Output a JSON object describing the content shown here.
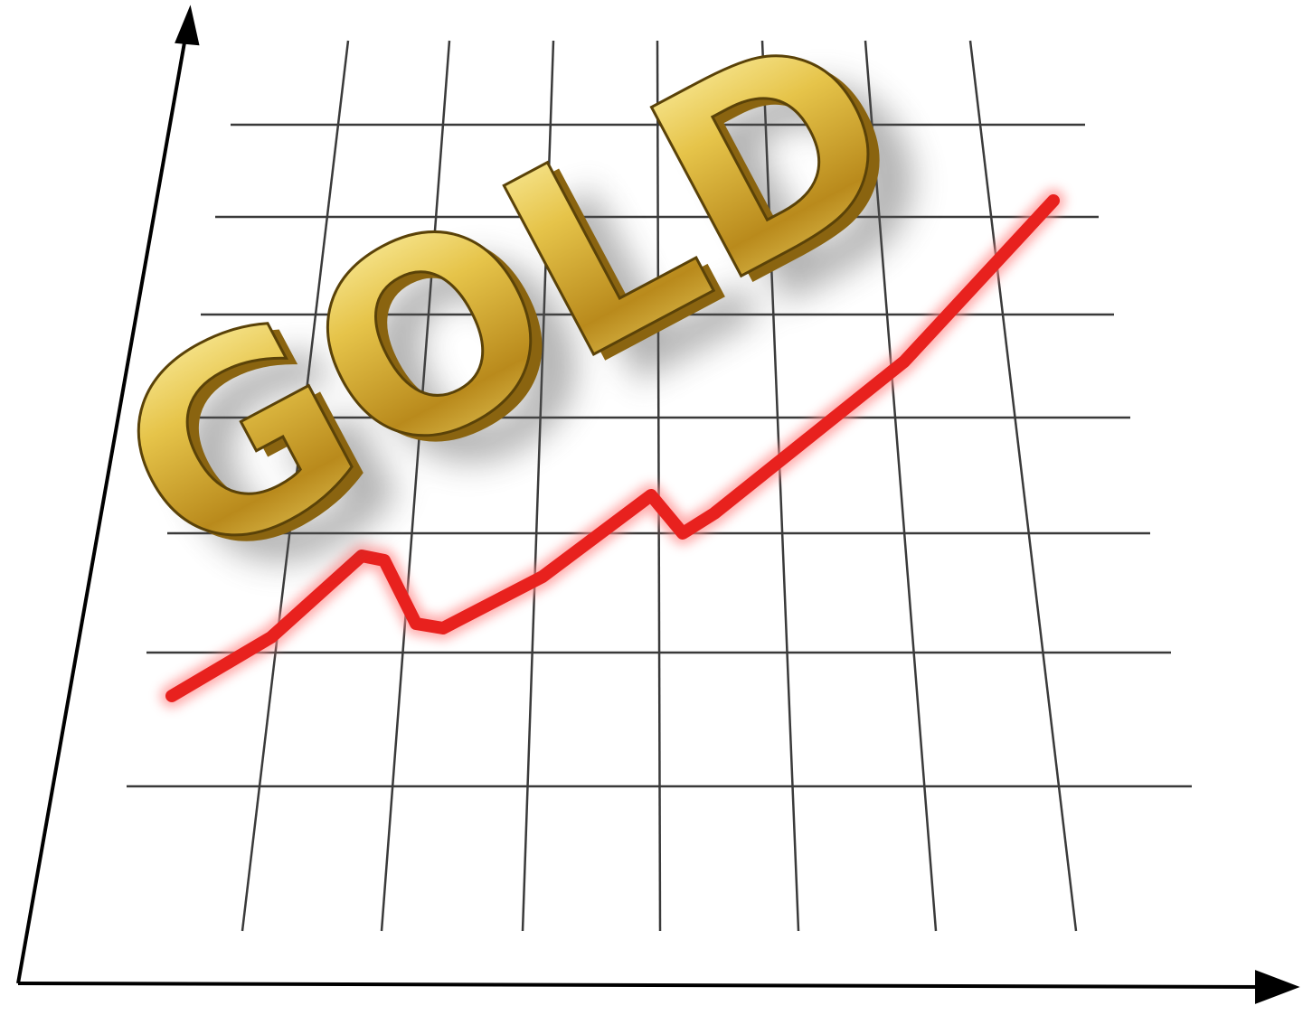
{
  "illustration": {
    "word": "GOLD"
  }
}
